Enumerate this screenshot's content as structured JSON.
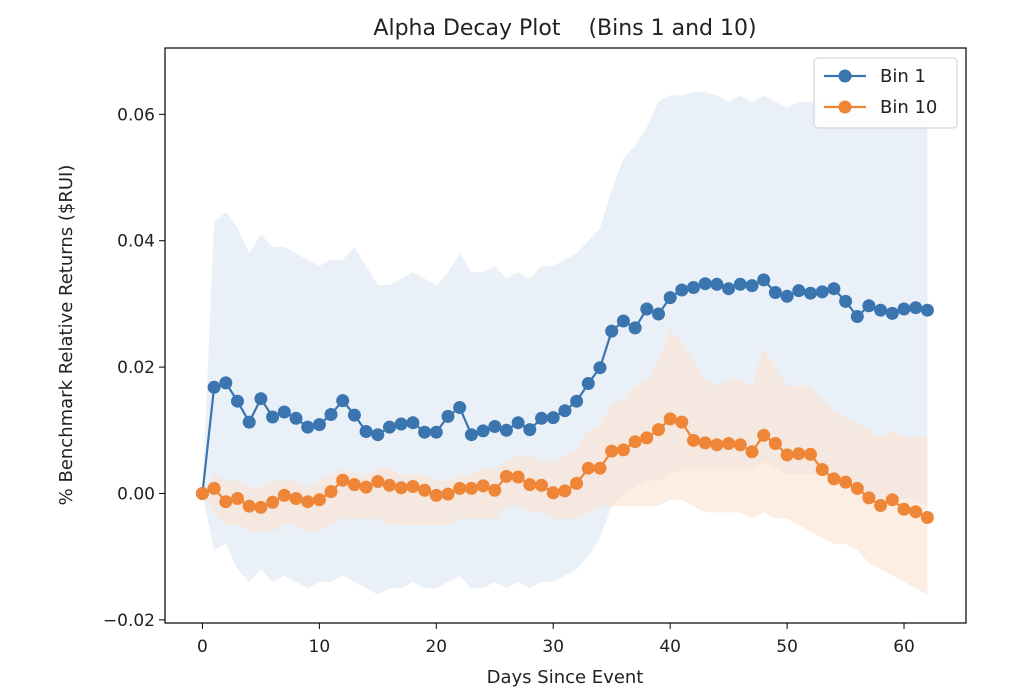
{
  "chart_data": {
    "type": "line",
    "title": "Alpha Decay Plot    (Bins 1 and 10)",
    "xlabel": "Days Since Event",
    "ylabel": "% Benchmark Relative Returns ($RUI)",
    "xlim": [
      -3.2,
      65.3
    ],
    "ylim": [
      -0.0205,
      0.0705
    ],
    "xticks": [
      0,
      10,
      20,
      30,
      40,
      50,
      60
    ],
    "xtick_labels": [
      "0",
      "10",
      "20",
      "30",
      "40",
      "50",
      "60"
    ],
    "yticks": [
      -0.02,
      0.0,
      0.02,
      0.04,
      0.06
    ],
    "ytick_labels": [
      "−0.02",
      "0.00",
      "0.02",
      "0.04",
      "0.06"
    ],
    "grid": false,
    "legend": "top-right",
    "x": [
      0,
      1,
      2,
      3,
      4,
      5,
      6,
      7,
      8,
      9,
      10,
      11,
      12,
      13,
      14,
      15,
      16,
      17,
      18,
      19,
      20,
      21,
      22,
      23,
      24,
      25,
      26,
      27,
      28,
      29,
      30,
      31,
      32,
      33,
      34,
      35,
      36,
      37,
      38,
      39,
      40,
      41,
      42,
      43,
      44,
      45,
      46,
      47,
      48,
      49,
      50,
      51,
      52,
      53,
      54,
      55,
      56,
      57,
      58,
      59,
      60,
      61,
      62
    ],
    "series": [
      {
        "name": "Bin 1",
        "color": "#3b75af",
        "band_color": "#dce6f2",
        "values": [
          0.0,
          0.0168,
          0.0175,
          0.0146,
          0.0113,
          0.015,
          0.0121,
          0.0129,
          0.0119,
          0.0105,
          0.0109,
          0.0125,
          0.0147,
          0.0124,
          0.0098,
          0.0093,
          0.0105,
          0.011,
          0.0112,
          0.0097,
          0.0097,
          0.0122,
          0.0136,
          0.0093,
          0.0099,
          0.0106,
          0.01,
          0.0112,
          0.0101,
          0.0119,
          0.012,
          0.0131,
          0.0146,
          0.0174,
          0.0199,
          0.0257,
          0.0273,
          0.0262,
          0.0292,
          0.0284,
          0.031,
          0.0322,
          0.0326,
          0.0332,
          0.0331,
          0.0324,
          0.0331,
          0.0329,
          0.0338,
          0.0318,
          0.0312,
          0.0321,
          0.0317,
          0.0319,
          0.0324,
          0.0304,
          0.028,
          0.0297,
          0.029,
          0.0285,
          0.0292,
          0.0294,
          0.029
        ],
        "upper": [
          0.0,
          0.043,
          0.0445,
          0.042,
          0.038,
          0.041,
          0.039,
          0.039,
          0.038,
          0.037,
          0.036,
          0.037,
          0.037,
          0.039,
          0.036,
          0.033,
          0.033,
          0.034,
          0.035,
          0.034,
          0.033,
          0.035,
          0.038,
          0.035,
          0.035,
          0.036,
          0.034,
          0.035,
          0.034,
          0.036,
          0.036,
          0.037,
          0.038,
          0.04,
          0.042,
          0.048,
          0.053,
          0.055,
          0.058,
          0.062,
          0.063,
          0.063,
          0.0635,
          0.0635,
          0.063,
          0.062,
          0.063,
          0.062,
          0.063,
          0.062,
          0.061,
          0.062,
          0.062,
          0.062,
          0.062,
          0.061,
          0.06,
          0.061,
          0.061,
          0.06,
          0.06,
          0.06,
          0.06
        ],
        "lower": [
          0.0,
          -0.009,
          -0.008,
          -0.012,
          -0.014,
          -0.012,
          -0.014,
          -0.013,
          -0.014,
          -0.015,
          -0.014,
          -0.014,
          -0.013,
          -0.014,
          -0.015,
          -0.016,
          -0.015,
          -0.015,
          -0.014,
          -0.015,
          -0.015,
          -0.014,
          -0.013,
          -0.015,
          -0.015,
          -0.014,
          -0.015,
          -0.014,
          -0.015,
          -0.014,
          -0.014,
          -0.013,
          -0.012,
          -0.01,
          -0.007,
          -0.002,
          0.0,
          0.001,
          0.002,
          0.002,
          0.003,
          0.004,
          0.004,
          0.004,
          0.004,
          0.004,
          0.004,
          0.004,
          0.005,
          0.004,
          0.003,
          0.003,
          0.003,
          0.003,
          0.002,
          0.001,
          0.0,
          0.0,
          -0.001,
          -0.001,
          -0.001,
          -0.001,
          -0.002
        ]
      },
      {
        "name": "Bin 10",
        "color": "#ef8637",
        "band_color": "#fbe3d1",
        "values": [
          0.0,
          0.0008,
          -0.0013,
          -0.0008,
          -0.002,
          -0.0022,
          -0.0014,
          -0.0003,
          -0.0008,
          -0.0013,
          -0.001,
          0.0003,
          0.0021,
          0.0014,
          0.001,
          0.0019,
          0.0013,
          0.0009,
          0.0011,
          0.0005,
          -0.0003,
          -0.0001,
          0.0008,
          0.0008,
          0.0012,
          0.0005,
          0.0027,
          0.0026,
          0.0014,
          0.0013,
          0.0001,
          0.0004,
          0.0016,
          0.004,
          0.004,
          0.0067,
          0.0069,
          0.0082,
          0.0088,
          0.0101,
          0.0118,
          0.0113,
          0.0084,
          0.008,
          0.0077,
          0.0079,
          0.0077,
          0.0066,
          0.0092,
          0.0079,
          0.0061,
          0.0063,
          0.0062,
          0.0038,
          0.0023,
          0.0018,
          0.0008,
          -0.0007,
          -0.0019,
          -0.001,
          -0.0025,
          -0.0029,
          -0.0038
        ],
        "upper": [
          0.0,
          0.003,
          0.002,
          0.002,
          0.001,
          0.001,
          0.002,
          0.002,
          0.002,
          0.001,
          0.002,
          0.003,
          0.004,
          0.003,
          0.003,
          0.004,
          0.004,
          0.003,
          0.003,
          0.003,
          0.002,
          0.002,
          0.003,
          0.003,
          0.004,
          0.004,
          0.005,
          0.006,
          0.006,
          0.005,
          0.005,
          0.006,
          0.007,
          0.01,
          0.011,
          0.014,
          0.015,
          0.017,
          0.018,
          0.021,
          0.026,
          0.024,
          0.021,
          0.018,
          0.017,
          0.018,
          0.018,
          0.017,
          0.023,
          0.02,
          0.017,
          0.017,
          0.017,
          0.015,
          0.013,
          0.012,
          0.011,
          0.01,
          0.009,
          0.01,
          0.009,
          0.009,
          0.009
        ],
        "lower": [
          0.0,
          -0.003,
          -0.005,
          -0.005,
          -0.006,
          -0.006,
          -0.006,
          -0.005,
          -0.005,
          -0.006,
          -0.006,
          -0.005,
          -0.004,
          -0.004,
          -0.004,
          -0.004,
          -0.005,
          -0.005,
          -0.005,
          -0.005,
          -0.005,
          -0.005,
          -0.004,
          -0.004,
          -0.004,
          -0.004,
          -0.002,
          -0.002,
          -0.003,
          -0.003,
          -0.004,
          -0.004,
          -0.004,
          -0.003,
          -0.002,
          -0.002,
          -0.002,
          -0.002,
          -0.002,
          -0.002,
          -0.001,
          -0.001,
          -0.002,
          -0.003,
          -0.003,
          -0.003,
          -0.003,
          -0.004,
          -0.003,
          -0.004,
          -0.004,
          -0.005,
          -0.006,
          -0.007,
          -0.008,
          -0.008,
          -0.009,
          -0.011,
          -0.012,
          -0.013,
          -0.014,
          -0.015,
          -0.016
        ]
      }
    ]
  }
}
